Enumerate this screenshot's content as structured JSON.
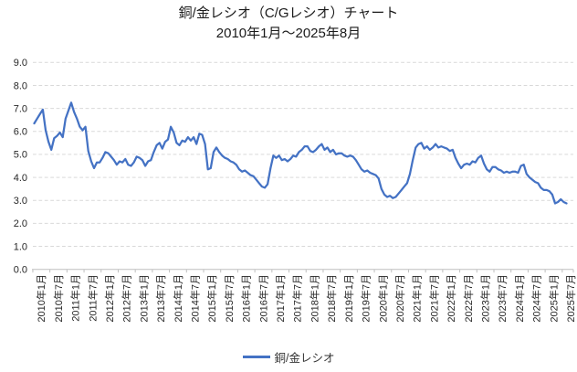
{
  "title": "銅/金レシオ（C/Gレシオ）チャート",
  "subtitle": "2010年1月～2025年8月",
  "legend": {
    "series_label": "銅/金レシオ"
  },
  "colors": {
    "line": "#4472C4",
    "gridline": "#D9D9D9",
    "axis": "#BFBFBF",
    "tick_text": "#262626",
    "title_text": "#1a1a1a"
  },
  "chart_data": {
    "type": "line",
    "title": "銅/金レシオ（C/Gレシオ）チャート",
    "subtitle": "2010年1月～2025年8月",
    "x_interval": "monthly",
    "x_start": "2010-01",
    "x_end": "2025-08",
    "point_count": 188,
    "ylim": [
      0,
      9
    ],
    "y_tick_labels": [
      "0.0",
      "1.0",
      "2.0",
      "3.0",
      "4.0",
      "5.0",
      "6.0",
      "7.0",
      "8.0",
      "9.0"
    ],
    "gridlines": "horizontal-dashed",
    "legend_position": "bottom",
    "x_tick_labels": [
      "2010年1月",
      "2010年7月",
      "2011年1月",
      "2011年7月",
      "2012年1月",
      "2012年7月",
      "2013年1月",
      "2013年7月",
      "2014年1月",
      "2014年7月",
      "2015年1月",
      "2015年7月",
      "2016年1月",
      "2016年7月",
      "2017年1月",
      "2017年7月",
      "2018年1月",
      "2018年7月",
      "2019年1月",
      "2019年7月",
      "2020年1月",
      "2020年7月",
      "2021年1月",
      "2021年7月",
      "2022年1月",
      "2022年7月",
      "2023年1月",
      "2023年7月",
      "2024年1月",
      "2024年7月",
      "2025年1月",
      "2025年7月"
    ],
    "series": [
      {
        "name": "銅/金レシオ",
        "values": [
          6.35,
          6.55,
          6.75,
          6.95,
          6.05,
          5.55,
          5.2,
          5.7,
          5.8,
          5.95,
          5.75,
          6.55,
          6.9,
          7.25,
          6.85,
          6.55,
          6.2,
          6.05,
          6.2,
          5.15,
          4.7,
          4.4,
          4.65,
          4.65,
          4.85,
          5.1,
          5.05,
          4.9,
          4.75,
          4.55,
          4.7,
          4.65,
          4.8,
          4.55,
          4.5,
          4.65,
          4.9,
          4.85,
          4.75,
          4.5,
          4.7,
          4.75,
          5.1,
          5.4,
          5.5,
          5.25,
          5.55,
          5.65,
          6.2,
          5.95,
          5.5,
          5.4,
          5.6,
          5.55,
          5.75,
          5.6,
          5.75,
          5.45,
          5.9,
          5.85,
          5.45,
          4.35,
          4.4,
          5.1,
          5.3,
          5.1,
          4.95,
          4.85,
          4.8,
          4.7,
          4.65,
          4.55,
          4.35,
          4.25,
          4.3,
          4.2,
          4.1,
          4.05,
          3.9,
          3.75,
          3.6,
          3.55,
          3.7,
          4.4,
          4.95,
          4.85,
          4.95,
          4.75,
          4.8,
          4.7,
          4.8,
          4.95,
          4.9,
          5.1,
          5.2,
          5.35,
          5.35,
          5.15,
          5.1,
          5.2,
          5.35,
          5.45,
          5.2,
          5.3,
          5.1,
          5.2,
          5.0,
          5.05,
          5.05,
          4.95,
          4.9,
          4.95,
          4.9,
          4.75,
          4.55,
          4.35,
          4.25,
          4.3,
          4.2,
          4.15,
          4.1,
          3.95,
          3.5,
          3.25,
          3.15,
          3.2,
          3.1,
          3.15,
          3.3,
          3.45,
          3.6,
          3.75,
          4.15,
          4.75,
          5.3,
          5.45,
          5.5,
          5.25,
          5.35,
          5.2,
          5.3,
          5.45,
          5.3,
          5.35,
          5.3,
          5.25,
          5.15,
          5.2,
          4.85,
          4.6,
          4.4,
          4.55,
          4.6,
          4.55,
          4.7,
          4.65,
          4.85,
          4.95,
          4.6,
          4.35,
          4.25,
          4.45,
          4.45,
          4.35,
          4.3,
          4.2,
          4.25,
          4.2,
          4.25,
          4.25,
          4.2,
          4.5,
          4.55,
          4.15,
          4.0,
          3.9,
          3.8,
          3.75,
          3.55,
          3.45,
          3.45,
          3.4,
          3.25,
          2.87,
          2.93,
          3.05,
          2.93,
          2.87
        ]
      }
    ]
  }
}
